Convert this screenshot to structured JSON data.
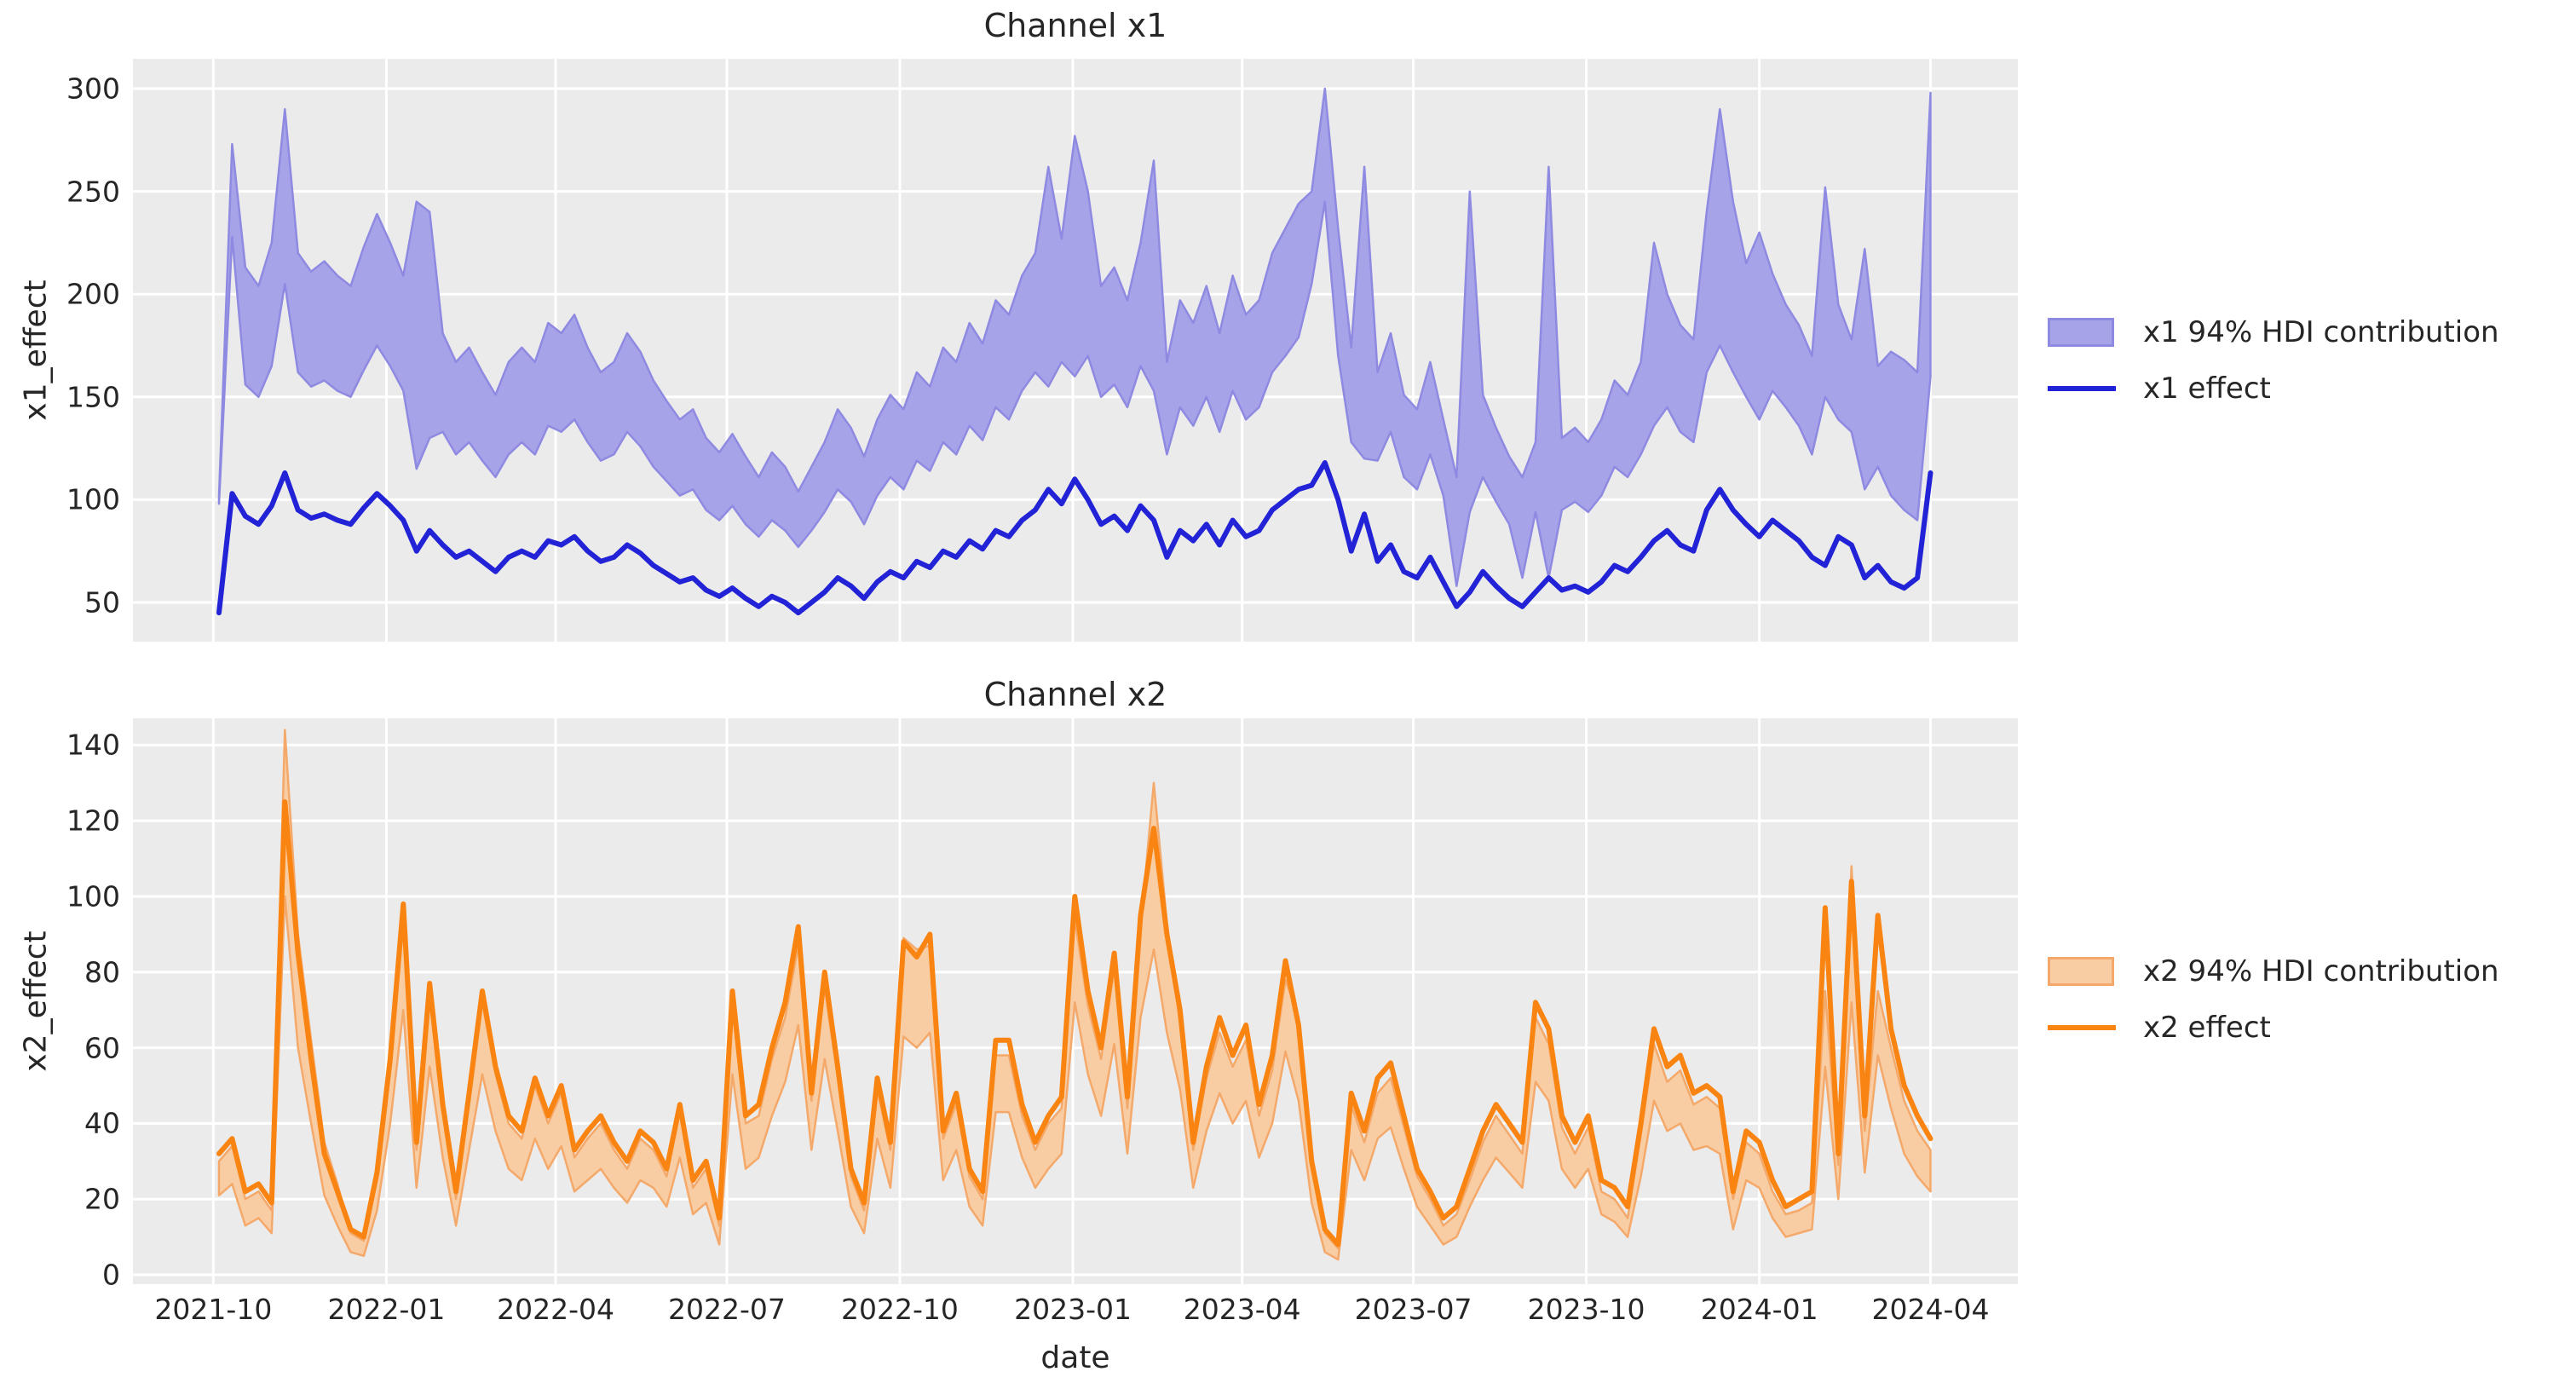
{
  "figure": {
    "background": "#ffffff",
    "plot_background": "#ebebeb",
    "grid_color": "#ffffff",
    "text_color": "#262626"
  },
  "chart_data": [
    {
      "type": "line",
      "title": "Channel x1",
      "xlabel": "",
      "ylabel": "x1_effect",
      "grid": true,
      "legend_position": "right",
      "x_start_date": "2021-10-04",
      "x_interval_days": 7,
      "n_points": 131,
      "x_tick_labels": [
        "2021-10",
        "2022-01",
        "2022-04",
        "2022-07",
        "2022-10",
        "2023-01",
        "2023-04",
        "2023-07",
        "2023-10",
        "2024-01",
        "2024-04"
      ],
      "y_ticks": [
        50,
        100,
        150,
        200,
        250,
        300
      ],
      "ylim": [
        31,
        314
      ],
      "colors": {
        "line": "#2222d6",
        "band_fill": "#a7a3e8",
        "band_edge": "#8f8ae1"
      },
      "legend": [
        {
          "label": "x1 94% HDI contribution",
          "type": "patch"
        },
        {
          "label": "x1 effect",
          "type": "line"
        }
      ],
      "series": [
        {
          "name": "x1 94% HDI contribution",
          "type": "band",
          "low": [
            98,
            228,
            156,
            150,
            165,
            205,
            162,
            155,
            158,
            153,
            150,
            163,
            175,
            165,
            153,
            115,
            130,
            133,
            122,
            128,
            119,
            111,
            122,
            128,
            122,
            136,
            133,
            139,
            128,
            119,
            122,
            133,
            126,
            116,
            109,
            102,
            105,
            95,
            90,
            97,
            88,
            82,
            90,
            85,
            77,
            85,
            94,
            105,
            99,
            88,
            102,
            111,
            105,
            119,
            114,
            128,
            122,
            136,
            129,
            145,
            139,
            153,
            162,
            155,
            167,
            160,
            170,
            150,
            156,
            145,
            165,
            153,
            122,
            145,
            136,
            150,
            133,
            153,
            139,
            145,
            162,
            170,
            179,
            205,
            245,
            170,
            128,
            120,
            119,
            133,
            111,
            105,
            122,
            102,
            58,
            94,
            111,
            99,
            88,
            62,
            94,
            62,
            95,
            99,
            94,
            102,
            116,
            111,
            122,
            136,
            145,
            133,
            128,
            162,
            175,
            162,
            150,
            139,
            153,
            145,
            136,
            122,
            150,
            139,
            133,
            105,
            116,
            102,
            95,
            90,
            160
          ],
          "high": [
            102,
            273,
            213,
            204,
            225,
            290,
            220,
            211,
            216,
            209,
            204,
            223,
            239,
            225,
            209,
            245,
            240,
            181,
            167,
            174,
            162,
            151,
            167,
            174,
            167,
            186,
            181,
            190,
            174,
            162,
            167,
            181,
            172,
            158,
            148,
            139,
            144,
            130,
            123,
            132,
            121,
            111,
            123,
            116,
            104,
            116,
            128,
            144,
            135,
            121,
            139,
            151,
            144,
            162,
            155,
            174,
            167,
            186,
            176,
            197,
            190,
            209,
            220,
            262,
            227,
            277,
            250,
            204,
            213,
            197,
            225,
            265,
            167,
            197,
            186,
            204,
            181,
            209,
            190,
            197,
            220,
            232,
            244,
            250,
            300,
            232,
            174,
            262,
            162,
            181,
            151,
            144,
            167,
            139,
            111,
            250,
            151,
            135,
            121,
            111,
            128,
            262,
            130,
            135,
            128,
            139,
            158,
            151,
            167,
            225,
            200,
            185,
            178,
            240,
            290,
            245,
            215,
            230,
            210,
            195,
            185,
            170,
            252,
            195,
            178,
            222,
            165,
            172,
            168,
            162,
            298
          ]
        },
        {
          "name": "x1 effect",
          "type": "line",
          "values": [
            45,
            103,
            92,
            88,
            97,
            113,
            95,
            91,
            93,
            90,
            88,
            96,
            103,
            97,
            90,
            75,
            85,
            78,
            72,
            75,
            70,
            65,
            72,
            75,
            72,
            80,
            78,
            82,
            75,
            70,
            72,
            78,
            74,
            68,
            64,
            60,
            62,
            56,
            53,
            57,
            52,
            48,
            53,
            50,
            45,
            50,
            55,
            62,
            58,
            52,
            60,
            65,
            62,
            70,
            67,
            75,
            72,
            80,
            76,
            85,
            82,
            90,
            95,
            105,
            98,
            110,
            100,
            88,
            92,
            85,
            97,
            90,
            72,
            85,
            80,
            88,
            78,
            90,
            82,
            85,
            95,
            100,
            105,
            107,
            118,
            100,
            75,
            93,
            70,
            78,
            65,
            62,
            72,
            60,
            48,
            55,
            65,
            58,
            52,
            48,
            55,
            62,
            56,
            58,
            55,
            60,
            68,
            65,
            72,
            80,
            85,
            78,
            75,
            95,
            105,
            95,
            88,
            82,
            90,
            85,
            80,
            72,
            68,
            82,
            78,
            62,
            68,
            60,
            57,
            62,
            113
          ]
        }
      ]
    },
    {
      "type": "line",
      "title": "Channel x2",
      "xlabel": "date",
      "ylabel": "x2_effect",
      "grid": true,
      "legend_position": "right",
      "x_start_date": "2021-10-04",
      "x_interval_days": 7,
      "n_points": 131,
      "x_tick_labels": [
        "2021-10",
        "2022-01",
        "2022-04",
        "2022-07",
        "2022-10",
        "2023-01",
        "2023-04",
        "2023-07",
        "2023-10",
        "2024-01",
        "2024-04"
      ],
      "y_ticks": [
        0,
        20,
        40,
        60,
        80,
        100,
        120,
        140
      ],
      "ylim": [
        -2.5,
        147
      ],
      "colors": {
        "line": "#f98412",
        "band_fill": "#f8cda4",
        "band_edge": "#f4a96a"
      },
      "legend": [
        {
          "label": "x2 94% HDI contribution",
          "type": "patch"
        },
        {
          "label": "x2 effect",
          "type": "line"
        }
      ],
      "series": [
        {
          "name": "x2 94% HDI contribution",
          "type": "band",
          "low": [
            21,
            24,
            13,
            15,
            11,
            100,
            60,
            40,
            21,
            13,
            6,
            5,
            17,
            40,
            70,
            23,
            55,
            31,
            13,
            33,
            53,
            38,
            28,
            25,
            36,
            28,
            34,
            22,
            25,
            28,
            23,
            19,
            25,
            23,
            18,
            31,
            16,
            19,
            8,
            53,
            28,
            31,
            42,
            51,
            66,
            33,
            57,
            38,
            18,
            11,
            36,
            23,
            63,
            60,
            64,
            25,
            33,
            18,
            13,
            43,
            43,
            31,
            23,
            28,
            32,
            72,
            53,
            42,
            61,
            32,
            68,
            86,
            64,
            49,
            23,
            38,
            48,
            40,
            46,
            31,
            40,
            59,
            46,
            19,
            6,
            4,
            33,
            25,
            36,
            39,
            28,
            18,
            13,
            8,
            10,
            18,
            25,
            31,
            27,
            23,
            51,
            46,
            28,
            23,
            28,
            16,
            14,
            10,
            26,
            46,
            38,
            40,
            33,
            34,
            32,
            12,
            25,
            23,
            15,
            10,
            11,
            12,
            55,
            20,
            72,
            27,
            58,
            44,
            32,
            26,
            22
          ],
          "high": [
            30,
            34,
            20,
            22,
            17,
            144,
            90,
            62,
            35,
            24,
            11,
            9,
            25,
            55,
            93,
            33,
            73,
            43,
            20,
            46,
            72,
            53,
            40,
            36,
            50,
            40,
            48,
            31,
            36,
            40,
            33,
            28,
            36,
            33,
            26,
            43,
            23,
            28,
            13,
            70,
            40,
            42,
            57,
            68,
            87,
            46,
            76,
            52,
            26,
            17,
            49,
            33,
            89,
            86,
            87,
            36,
            45,
            26,
            20,
            58,
            58,
            42,
            33,
            40,
            44,
            94,
            71,
            57,
            81,
            44,
            92,
            130,
            93,
            66,
            33,
            52,
            64,
            55,
            62,
            42,
            54,
            78,
            68,
            28,
            11,
            7,
            45,
            35,
            48,
            52,
            39,
            26,
            20,
            13,
            16,
            25,
            35,
            42,
            37,
            32,
            68,
            61,
            39,
            32,
            39,
            22,
            20,
            15,
            37,
            61,
            51,
            54,
            45,
            47,
            44,
            20,
            35,
            32,
            22,
            16,
            17,
            19,
            75,
            29,
            108,
            38,
            75,
            60,
            46,
            38,
            33
          ]
        },
        {
          "name": "x2 effect",
          "type": "line",
          "values": [
            32,
            36,
            22,
            24,
            19,
            125,
            85,
            57,
            32,
            22,
            12,
            10,
            27,
            57,
            98,
            35,
            77,
            45,
            22,
            48,
            75,
            55,
            42,
            38,
            52,
            42,
            50,
            33,
            38,
            42,
            35,
            30,
            38,
            35,
            28,
            45,
            25,
            30,
            15,
            75,
            42,
            45,
            60,
            72,
            92,
            48,
            80,
            55,
            28,
            19,
            52,
            35,
            88,
            84,
            90,
            38,
            48,
            28,
            22,
            62,
            62,
            45,
            35,
            42,
            47,
            100,
            75,
            60,
            85,
            47,
            95,
            118,
            90,
            70,
            35,
            55,
            68,
            58,
            66,
            45,
            58,
            83,
            66,
            30,
            12,
            8,
            48,
            38,
            52,
            56,
            42,
            28,
            22,
            15,
            18,
            28,
            38,
            45,
            40,
            35,
            72,
            65,
            42,
            35,
            42,
            25,
            23,
            18,
            40,
            65,
            55,
            58,
            48,
            50,
            47,
            22,
            38,
            35,
            25,
            18,
            20,
            22,
            97,
            32,
            104,
            42,
            95,
            65,
            50,
            42,
            36
          ]
        }
      ]
    }
  ]
}
